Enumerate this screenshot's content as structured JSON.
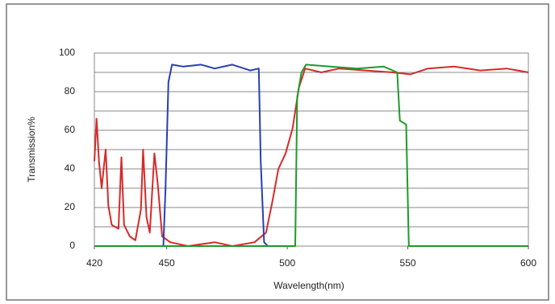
{
  "chart_data": {
    "type": "line",
    "xlabel": "Wavelength(nm)",
    "ylabel": "Transmission%",
    "xlim": [
      420,
      600
    ],
    "xticks": [
      420,
      450,
      500,
      550,
      600
    ],
    "ylim": [
      0,
      100
    ],
    "yticks": [
      0,
      20,
      40,
      60,
      80,
      100
    ],
    "grid": true,
    "minor_grid": true,
    "series": [
      {
        "color": "#d62a2a",
        "x": [
          420,
          420.9,
          421.9,
          423,
          424.7,
          425.8,
          427.2,
          430,
          431.2,
          432.3,
          434.7,
          437,
          439.3,
          440.2,
          441.6,
          443,
          444.9,
          446.3,
          448.1,
          451.5,
          458.8,
          469.9,
          477.2,
          486.4,
          491.2,
          493.8,
          496.3,
          499.3,
          502.2,
          504.8,
          507.4,
          514.1,
          521.5,
          532.6,
          543.7,
          551.1,
          558.3,
          569.2,
          580.1,
          591,
          600
        ],
        "values": [
          44,
          66,
          44,
          30,
          50,
          21,
          11,
          9,
          46,
          11,
          5,
          3,
          19,
          50,
          15,
          7,
          48,
          32,
          5,
          2,
          0,
          2,
          0,
          2,
          7,
          23,
          40,
          48,
          61,
          82,
          92,
          90,
          92,
          91,
          90,
          89,
          92,
          93,
          91,
          92,
          90
        ]
      },
      {
        "color": "#2a3fb0",
        "x": [
          448.6,
          449.5,
          450.7,
          452.2,
          456.9,
          464.3,
          469.9,
          477.2,
          484.6,
          488.2,
          489,
          490.4,
          491.9
        ],
        "values": [
          0,
          30,
          85,
          94,
          93,
          94,
          92,
          94,
          91,
          92,
          44,
          2,
          0
        ]
      },
      {
        "color": "#1f9a2a",
        "x": [
          420,
          503.3,
          504.1,
          505.9,
          507.8,
          517.8,
          528.9,
          540,
          545.6,
          546.7,
          549.3,
          550.4,
          600
        ],
        "values": [
          0,
          0,
          77,
          90,
          94,
          93,
          92,
          93,
          90,
          65,
          63,
          0,
          0
        ]
      }
    ]
  }
}
